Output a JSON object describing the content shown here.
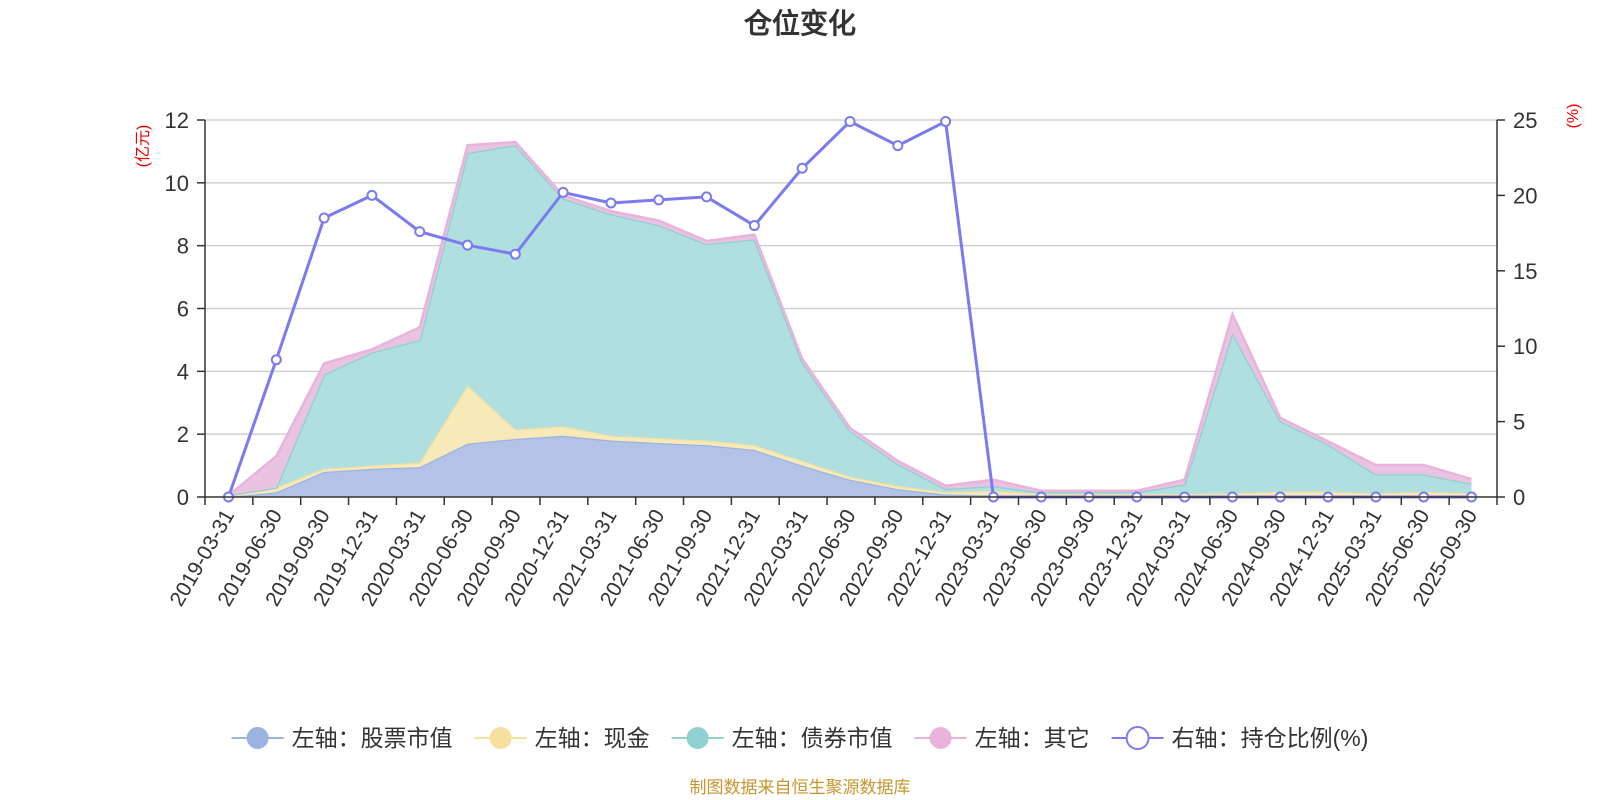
{
  "chart_data": {
    "type": "area",
    "title": "仓位变化",
    "x": [
      "2019-03-31",
      "2019-06-30",
      "2019-09-30",
      "2019-12-31",
      "2020-03-31",
      "2020-06-30",
      "2020-09-30",
      "2020-12-31",
      "2021-03-31",
      "2021-06-30",
      "2021-09-30",
      "2021-12-31",
      "2022-03-31",
      "2022-06-30",
      "2022-09-30",
      "2022-12-31",
      "2023-03-31",
      "2023-06-30",
      "2023-09-30",
      "2023-12-31",
      "2024-03-31",
      "2024-06-30",
      "2024-09-30",
      "2024-12-31",
      "2025-03-31",
      "2025-06-30",
      "2025-09-30"
    ],
    "left_axis": {
      "unit": "(亿元)",
      "ylim": [
        0,
        12
      ],
      "ticks": [
        0,
        2,
        4,
        6,
        8,
        10,
        12
      ]
    },
    "right_axis": {
      "unit": "(%)",
      "ylim": [
        0,
        25
      ],
      "ticks": [
        0,
        5,
        10,
        15,
        20,
        25
      ]
    },
    "series": [
      {
        "name": "左轴：股票市值",
        "axis": "left",
        "kind": "stacked-area",
        "color": "#9bb3e0",
        "fill": "#b3c3e8",
        "values": [
          0,
          0.15,
          0.8,
          0.9,
          0.95,
          1.7,
          1.85,
          1.95,
          1.8,
          1.72,
          1.65,
          1.5,
          1.0,
          0.55,
          0.25,
          0.08,
          0.05,
          0.02,
          0.02,
          0.02,
          0.02,
          0.02,
          0.02,
          0.02,
          0.02,
          0.02,
          0.02
        ]
      },
      {
        "name": "左轴：现金",
        "axis": "left",
        "kind": "stacked-area",
        "color": "#f5e0a0",
        "fill": "#f8e9b8",
        "values": [
          0.05,
          0.15,
          0.1,
          0.1,
          0.15,
          1.85,
          0.3,
          0.3,
          0.15,
          0.15,
          0.15,
          0.15,
          0.15,
          0.1,
          0.1,
          0.08,
          0.15,
          0.08,
          0.08,
          0.08,
          0.08,
          0.1,
          0.15,
          0.15,
          0.1,
          0.15,
          0.1
        ]
      },
      {
        "name": "左轴：债券市值",
        "axis": "left",
        "kind": "stacked-area",
        "color": "#8fd0d0",
        "fill": "#b0dfdf",
        "values": [
          0,
          0,
          3.0,
          3.6,
          3.9,
          7.4,
          9.05,
          7.25,
          7.05,
          6.78,
          6.25,
          6.55,
          3.15,
          1.45,
          0.7,
          0.1,
          0.15,
          0.05,
          0.05,
          0.05,
          0.3,
          5.1,
          2.25,
          1.5,
          0.6,
          0.55,
          0.3
        ]
      },
      {
        "name": "左轴：其它",
        "axis": "left",
        "kind": "stacked-area",
        "color": "#e8b4dc",
        "fill": "#eac2e2",
        "values": [
          0,
          1.0,
          0.35,
          0.1,
          0.4,
          0.25,
          0.1,
          0.1,
          0.1,
          0.15,
          0.1,
          0.15,
          0.1,
          0.1,
          0.1,
          0.1,
          0.2,
          0.05,
          0.05,
          0.05,
          0.15,
          0.6,
          0.1,
          0.1,
          0.3,
          0.3,
          0.15
        ]
      },
      {
        "name": "右轴：持仓比例(%)",
        "axis": "right",
        "kind": "line",
        "color": "#7b7bef",
        "values": [
          0,
          9.1,
          18.5,
          20.0,
          17.6,
          16.7,
          16.1,
          20.2,
          19.5,
          19.7,
          19.9,
          18.0,
          21.8,
          24.9,
          23.3,
          24.9,
          0,
          0,
          0,
          0,
          0,
          0,
          0,
          0,
          0,
          0,
          0
        ]
      }
    ],
    "grid": true,
    "legend_position": "bottom"
  },
  "footer": {
    "source": "制图数据来自恒生聚源数据库"
  }
}
